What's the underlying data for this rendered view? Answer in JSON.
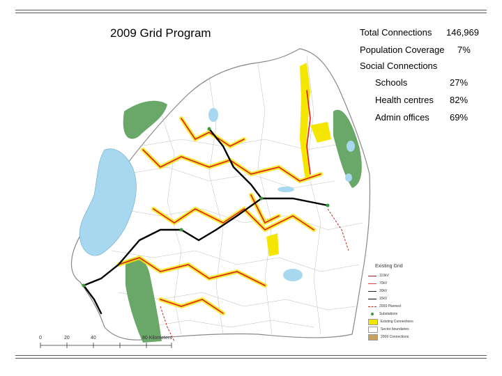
{
  "title": "2009 Grid Program",
  "stats": {
    "total_connections": {
      "label": "Total Connections",
      "value": "146,969"
    },
    "population_coverage": {
      "label": "Population Coverage",
      "value": "7%"
    },
    "social_connections": {
      "label": "Social Connections"
    }
  },
  "coverage": [
    {
      "label": "Schools",
      "value": "27%"
    },
    {
      "label": "Health centres",
      "value": "82%"
    },
    {
      "label": "Admin offices",
      "value": "69%"
    }
  ],
  "legend": {
    "title": "Existing Grid",
    "items": [
      {
        "label": "110kV",
        "color": "#8b1a1a",
        "kind": "line"
      },
      {
        "label": "70kV",
        "color": "#d94040",
        "kind": "line"
      },
      {
        "label": "30kV",
        "color": "#222222",
        "kind": "line"
      },
      {
        "label": "15kV",
        "color": "#000000",
        "kind": "line"
      },
      {
        "label": "2009 Planned",
        "color": "#c0281e",
        "kind": "dash"
      },
      {
        "label": "Substations",
        "color": "#3a9a3a",
        "kind": "dot"
      },
      {
        "label": "Existing Connections",
        "color": "#f2e600",
        "kind": "box"
      },
      {
        "label": "Sector boundaries",
        "color": "#ffffff",
        "kind": "box"
      },
      {
        "label": "2009 Connections",
        "color": "#c8a060",
        "kind": "box"
      }
    ]
  },
  "scale": [
    "0",
    "20",
    "40",
    "80 Kilometers"
  ],
  "colors": {
    "lake": "#a7d8ef",
    "park": "#6aa86a",
    "grid_trunk": "#000000",
    "grid_red": "#e01b1b",
    "coverage_yellow": "#f5e600"
  }
}
